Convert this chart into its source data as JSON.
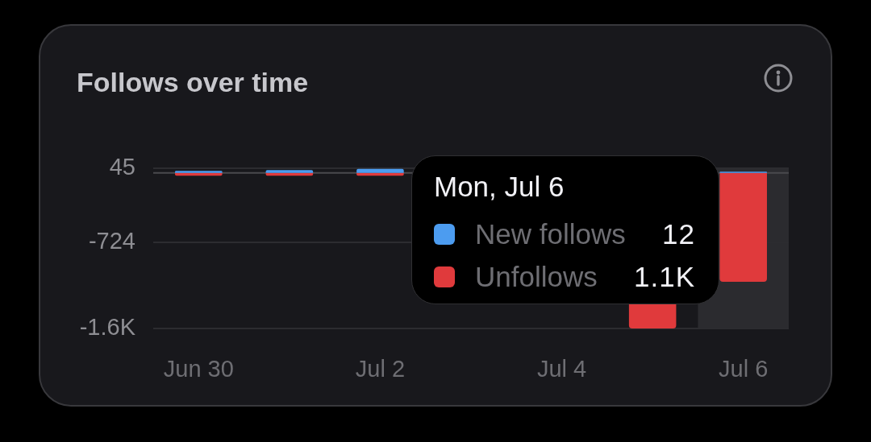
{
  "chart_data": {
    "type": "bar",
    "title": "Follows over time",
    "categories": [
      "Jun 30",
      null,
      "Jul 2",
      null,
      "Jul 4",
      null,
      "Jul 6"
    ],
    "series": [
      {
        "name": "New follows",
        "color": "#4c9cf0",
        "values": [
          20,
          30,
          45,
          null,
          null,
          null,
          12
        ]
      },
      {
        "name": "Unfollows",
        "color": "#e03a3c",
        "values": [
          -30,
          -30,
          -30,
          null,
          null,
          -1630,
          -1140
        ]
      }
    ],
    "stacked": true,
    "ylim": [
      -1630,
      45
    ],
    "yticks": [
      45,
      -724,
      {
        "value": -1630,
        "label": "-1.6K"
      }
    ],
    "grid": "y",
    "legend": "bottom right",
    "legend_title": "Mon, Jul 6",
    "annotations": [
      "12",
      "1.1K"
    ],
    "ref_lines": [
      {
        "axis": "y",
        "value": 0,
        "color": "#4a4a4e"
      }
    ],
    "bands": [
      {
        "axis": "x",
        "from": "Jul 6",
        "to": "Jul 6",
        "color": "#2b2b2f"
      }
    ]
  }
}
